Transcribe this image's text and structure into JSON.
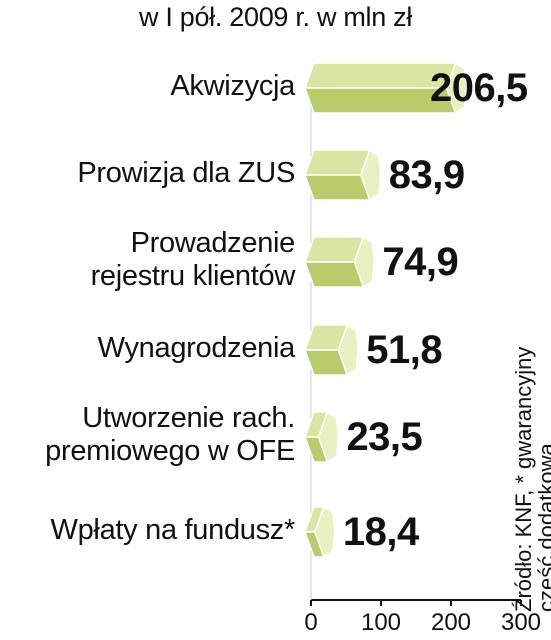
{
  "chart_data": {
    "type": "bar",
    "orientation": "horizontal",
    "subtitle": "w I pół. 2009 r. w mln zł",
    "categories": [
      [
        "Akwizycja"
      ],
      [
        "Prowizja dla ZUS"
      ],
      [
        "Prowadzenie",
        "rejestru klientów"
      ],
      [
        "Wynagrodzenia"
      ],
      [
        "Utworzenie rach.",
        "premiowego w OFE"
      ],
      [
        "Wpłaty na fundusz*"
      ]
    ],
    "values": [
      206.5,
      83.9,
      74.9,
      51.8,
      23.5,
      18.4
    ],
    "value_labels": [
      "206,5",
      "83,9",
      "74,9",
      "51,8",
      "23,5",
      "18,4"
    ],
    "xlim": [
      0,
      300
    ],
    "xticks": [
      "0",
      "100",
      "200",
      "300"
    ],
    "grid": false,
    "colors": {
      "bar_front": "#b9cc6c",
      "bar_top": "#d9e6a3",
      "bar_side": "#e8f0c2",
      "bar_outline": "#ffffff",
      "axis": "#111111"
    }
  },
  "source": {
    "line1": "Źródło: KNF, * gwarancyjny",
    "line2": "część dodatkową"
  }
}
